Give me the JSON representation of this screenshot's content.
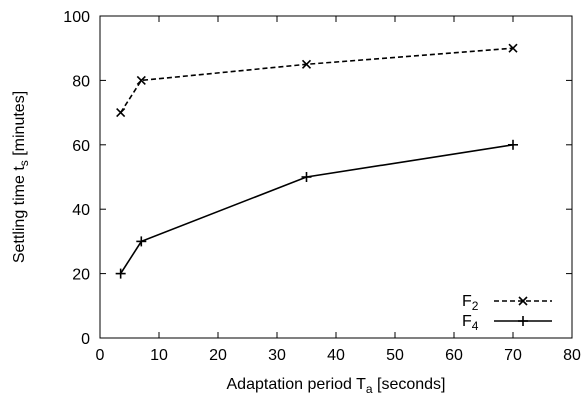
{
  "chart_data": {
    "type": "line",
    "title": "",
    "xlabel": "Adaptation period T",
    "xlabel_sub": "a",
    "xlabel_suffix": " [seconds]",
    "ylabel": "Settling time t",
    "ylabel_sub": "s",
    "ylabel_suffix": " [minutes]",
    "xlim": [
      0,
      80
    ],
    "ylim": [
      0,
      100
    ],
    "xticks": [
      "0",
      "10",
      "20",
      "30",
      "40",
      "50",
      "60",
      "70",
      "80"
    ],
    "yticks": [
      "0",
      "20",
      "40",
      "60",
      "80",
      "100"
    ],
    "grid": false,
    "legend_position": "bottom-right",
    "series": [
      {
        "name": "F",
        "name_sub": "2",
        "marker": "x",
        "dash": "dashed",
        "color": "#000000",
        "x": [
          3.5,
          7,
          35,
          70
        ],
        "y": [
          70,
          80,
          85,
          90
        ]
      },
      {
        "name": "F",
        "name_sub": "4",
        "marker": "+",
        "dash": "solid",
        "color": "#000000",
        "x": [
          3.5,
          7,
          35,
          70
        ],
        "y": [
          20,
          30,
          50,
          60
        ]
      }
    ]
  }
}
